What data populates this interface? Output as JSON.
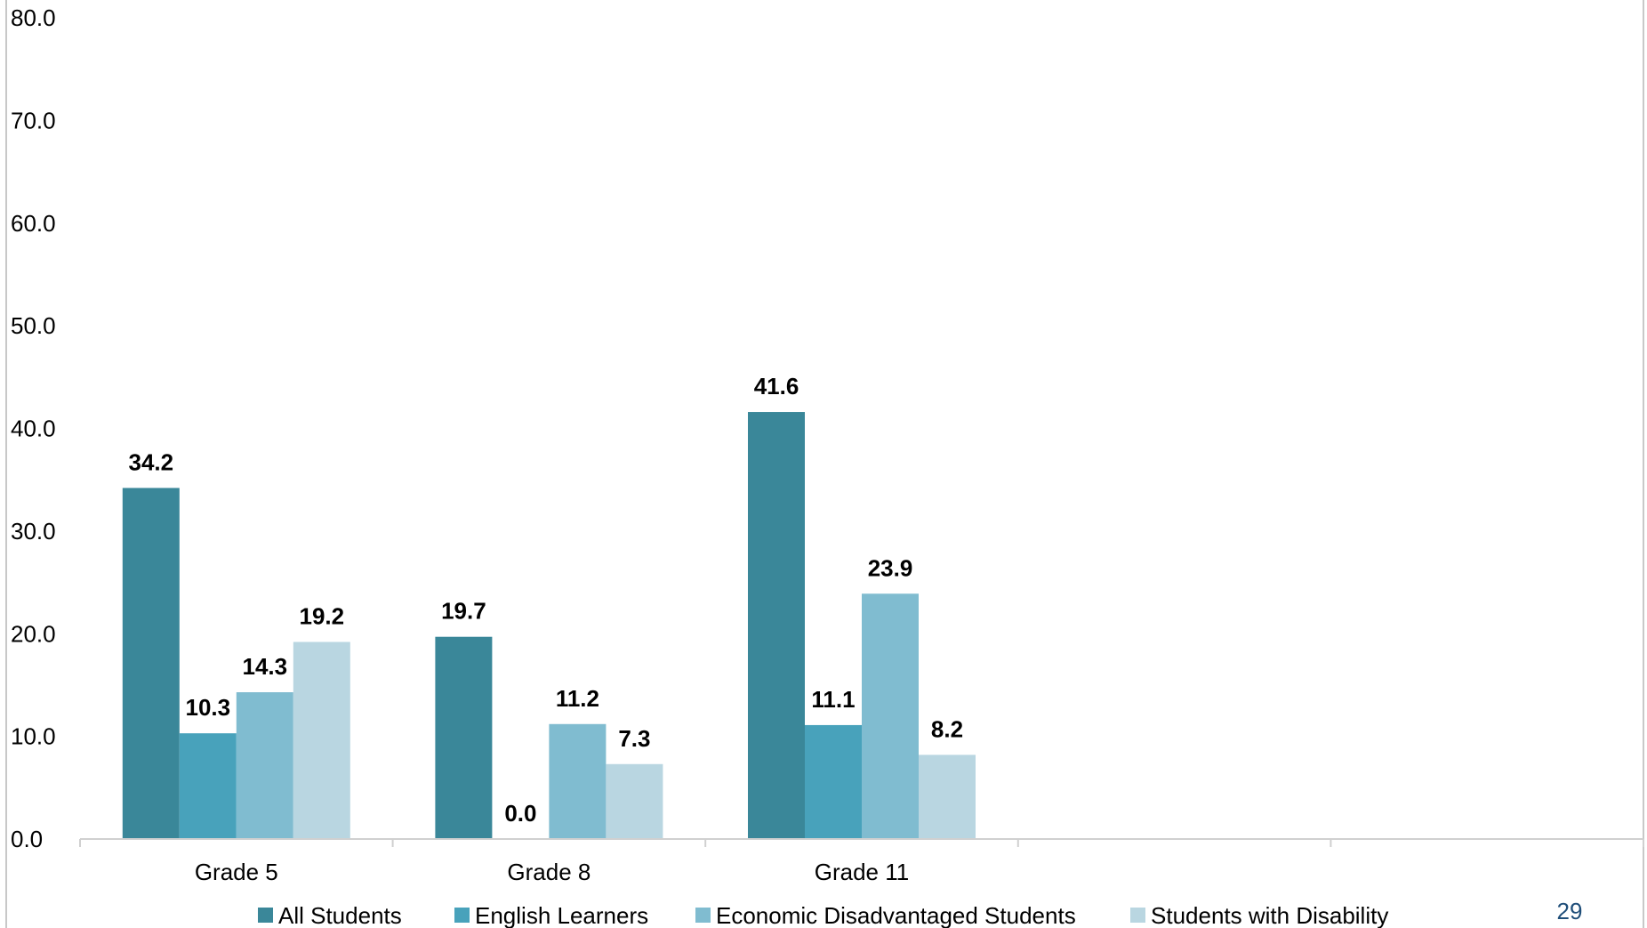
{
  "chart_data": {
    "type": "bar",
    "categories": [
      "Grade 5",
      "Grade 8",
      "Grade 11",
      "",
      ""
    ],
    "series": [
      {
        "name": "All Students",
        "values": [
          34.2,
          19.7,
          41.6,
          null,
          null
        ],
        "color": "#3a8799"
      },
      {
        "name": "English Learners",
        "values": [
          10.3,
          0.0,
          11.1,
          null,
          null
        ],
        "color": "#48a2bb"
      },
      {
        "name": "Economic Disadvantaged Students",
        "values": [
          14.3,
          11.2,
          23.9,
          null,
          null
        ],
        "color": "#80bcd0"
      },
      {
        "name": "Students with Disability",
        "values": [
          19.2,
          7.3,
          8.2,
          null,
          null
        ],
        "color": "#b9d6e1"
      }
    ],
    "ylim": [
      0,
      80
    ],
    "yticks": [
      0,
      10,
      20,
      30,
      40,
      50,
      60,
      70,
      80
    ],
    "ytick_labels": [
      "0.0",
      "10.0",
      "20.0",
      "30.0",
      "40.0",
      "50.0",
      "60.0",
      "70.0",
      "80.0"
    ],
    "data_labels": true,
    "grid": false,
    "legend": "bottom"
  },
  "page_number": "29"
}
